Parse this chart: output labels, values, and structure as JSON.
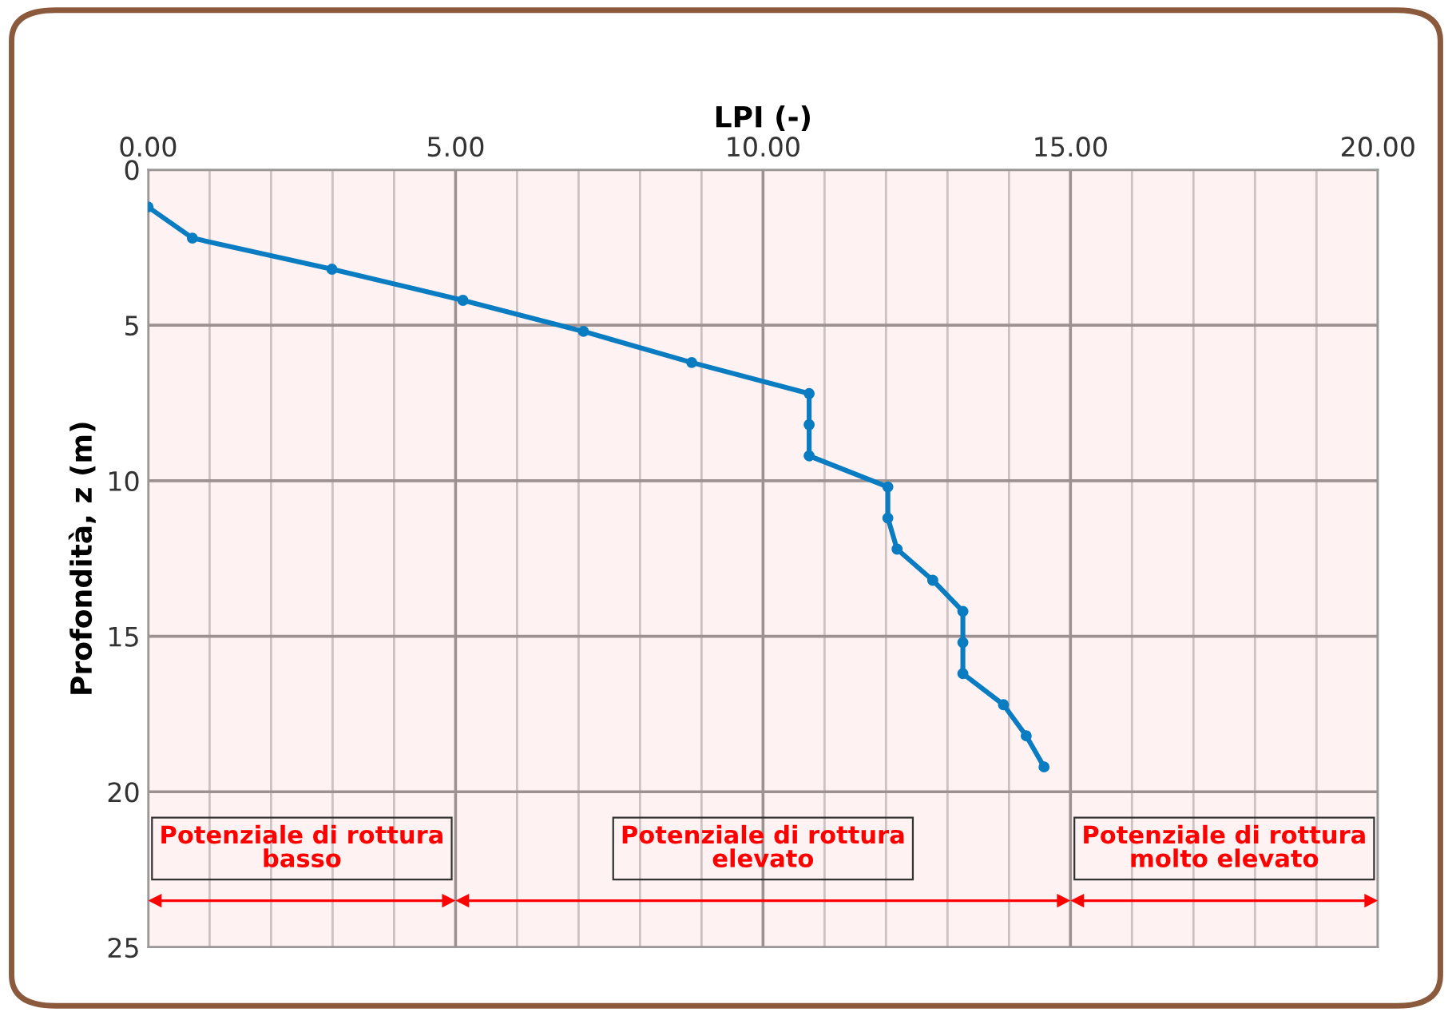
{
  "chart_data": {
    "type": "line",
    "xlabel": "LPI (-)",
    "ylabel": "Profondità, z (m)",
    "x": [
      0,
      0.72,
      2.99,
      5.12,
      7.08,
      8.84,
      10.75,
      10.75,
      10.75,
      12.03,
      12.03,
      12.18,
      12.76,
      13.25,
      13.25,
      13.25,
      13.91,
      14.28,
      14.57
    ],
    "series": [
      {
        "color": "#0a7cc1",
        "values": [
          1.2,
          2.2,
          3.2,
          4.2,
          5.2,
          6.2,
          7.2,
          8.2,
          9.2,
          10.2,
          11.2,
          12.2,
          13.2,
          14.2,
          15.2,
          16.2,
          17.2,
          18.2,
          19.2
        ]
      }
    ],
    "xlim": [
      0,
      20
    ],
    "xticks": [
      {
        "value": 0,
        "label": "0.00"
      },
      {
        "value": 1,
        "label": null
      },
      {
        "value": 2,
        "label": null
      },
      {
        "value": 3,
        "label": null
      },
      {
        "value": 4,
        "label": null
      },
      {
        "value": 5,
        "label": "5.00"
      },
      {
        "value": 6,
        "label": null
      },
      {
        "value": 7,
        "label": null
      },
      {
        "value": 8,
        "label": null
      },
      {
        "value": 9,
        "label": null
      },
      {
        "value": 10,
        "label": "10.00"
      },
      {
        "value": 11,
        "label": null
      },
      {
        "value": 12,
        "label": null
      },
      {
        "value": 13,
        "label": null
      },
      {
        "value": 14,
        "label": null
      },
      {
        "value": 15,
        "label": "15.00"
      },
      {
        "value": 16,
        "label": null
      },
      {
        "value": 17,
        "label": null
      },
      {
        "value": 18,
        "label": null
      },
      {
        "value": 19,
        "label": null
      },
      {
        "value": 20,
        "label": "20.00"
      }
    ],
    "ylim": [
      25,
      0
    ],
    "yticks": [
      0,
      5,
      10,
      15,
      20,
      25
    ],
    "grid": true,
    "marker": "circle",
    "line_style": "solid",
    "bands": [
      {
        "axis": "x",
        "from": 0,
        "to": 5,
        "label": "Potenziale di rottura\nbasso",
        "color": "#ff0000"
      },
      {
        "axis": "x",
        "from": 5,
        "to": 15,
        "label": "Potenziale di rottura\nelevato",
        "color": "#ff0000"
      },
      {
        "axis": "x",
        "from": 15,
        "to": 20,
        "label": "Potenziale di rottura\nmolto elevato",
        "color": "#ff0000"
      }
    ]
  }
}
